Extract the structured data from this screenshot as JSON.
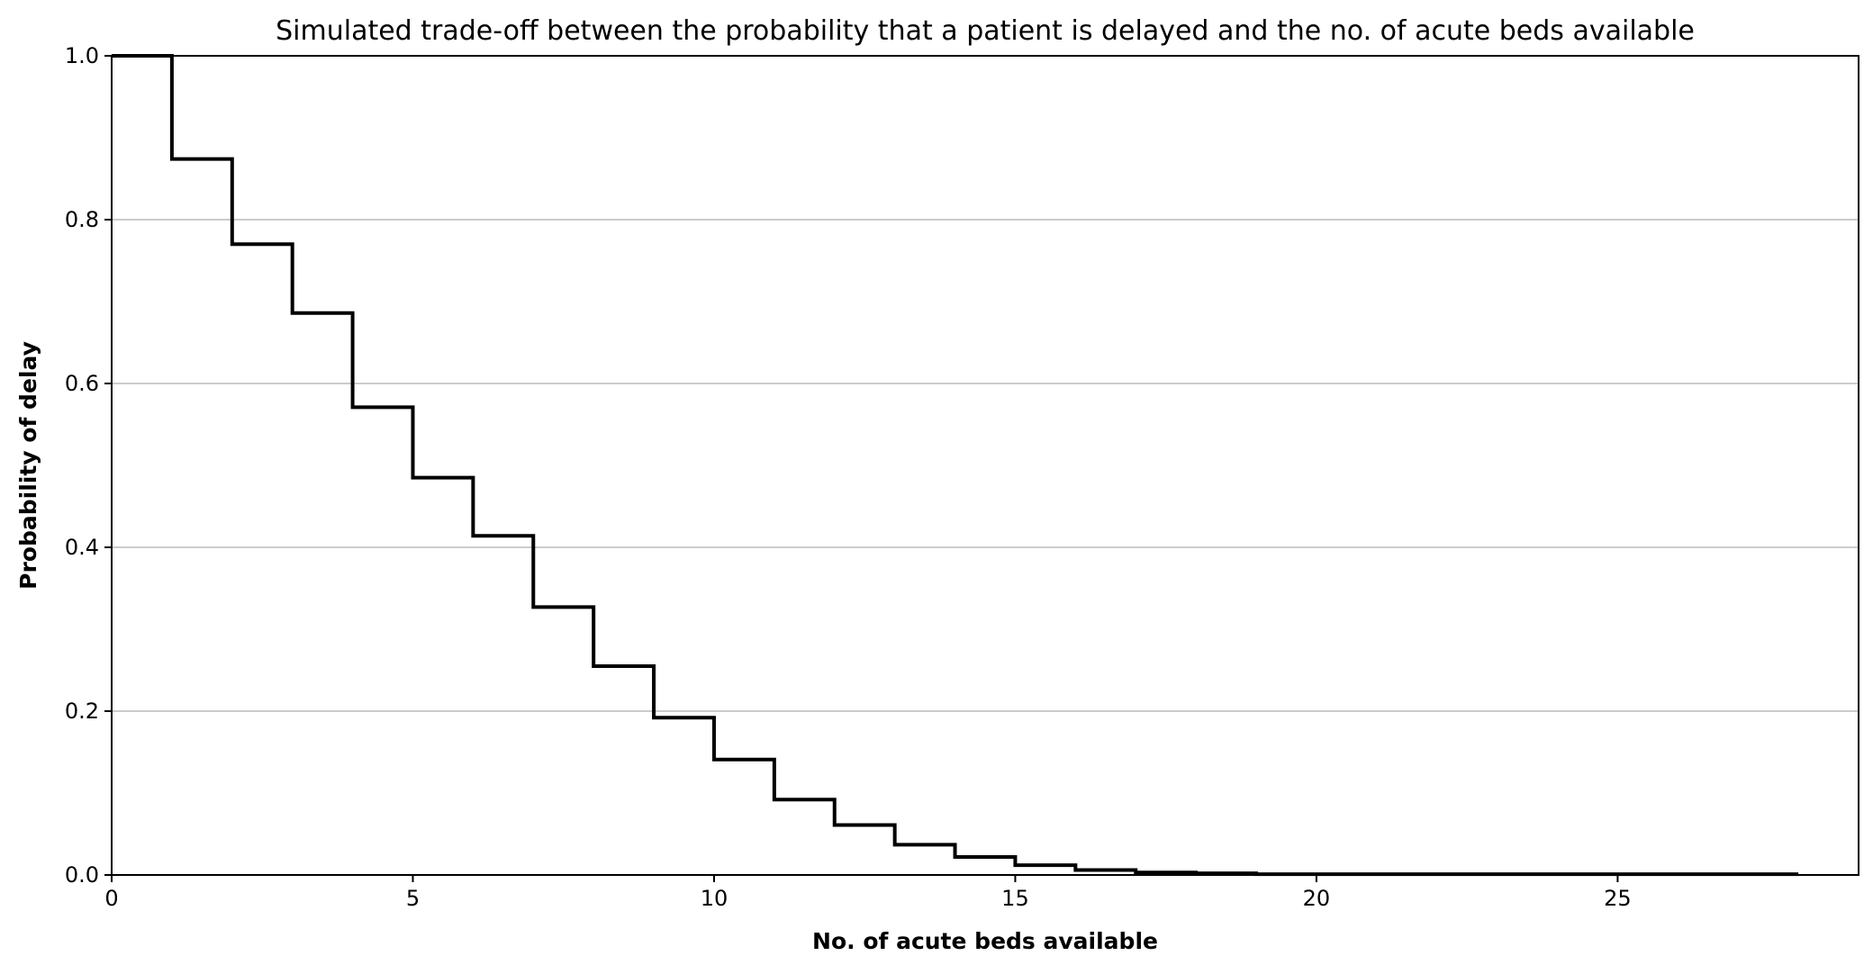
{
  "chart_data": {
    "type": "line",
    "drawstyle": "steps-post",
    "title": "Simulated trade-off between the probability that a patient is delayed and the no. of acute beds available",
    "xlabel": "No. of acute beds available",
    "ylabel": "Probability of delay",
    "xlim": [
      0,
      29
    ],
    "ylim": [
      0,
      1.0
    ],
    "x_ticks": [
      0,
      5,
      10,
      15,
      20,
      25
    ],
    "x_tick_labels": [
      "0",
      "5",
      "10",
      "15",
      "20",
      "25"
    ],
    "y_ticks": [
      0,
      0.2,
      0.4,
      0.6,
      0.8,
      1.0
    ],
    "y_tick_labels": [
      "0.0",
      "0.2",
      "0.4",
      "0.6",
      "0.8",
      "1.0"
    ],
    "grid": "horizontal",
    "line_color": "#000000",
    "grid_color": "#cccccc",
    "series": [
      {
        "x": [
          0,
          1,
          2,
          3,
          4,
          5,
          6,
          7,
          8,
          9,
          10,
          11,
          12,
          13,
          14,
          15,
          16,
          17,
          18,
          19,
          20,
          21,
          22,
          23,
          24,
          25,
          26,
          27,
          28
        ],
        "values": [
          1.0,
          0.874,
          0.77,
          0.686,
          0.571,
          0.485,
          0.414,
          0.327,
          0.255,
          0.192,
          0.141,
          0.092,
          0.061,
          0.037,
          0.022,
          0.012,
          0.006,
          0.003,
          0.002,
          0.001,
          0.001,
          0.001,
          0.001,
          0.001,
          0.001,
          0.001,
          0.001,
          0.001,
          0.001
        ]
      }
    ]
  }
}
